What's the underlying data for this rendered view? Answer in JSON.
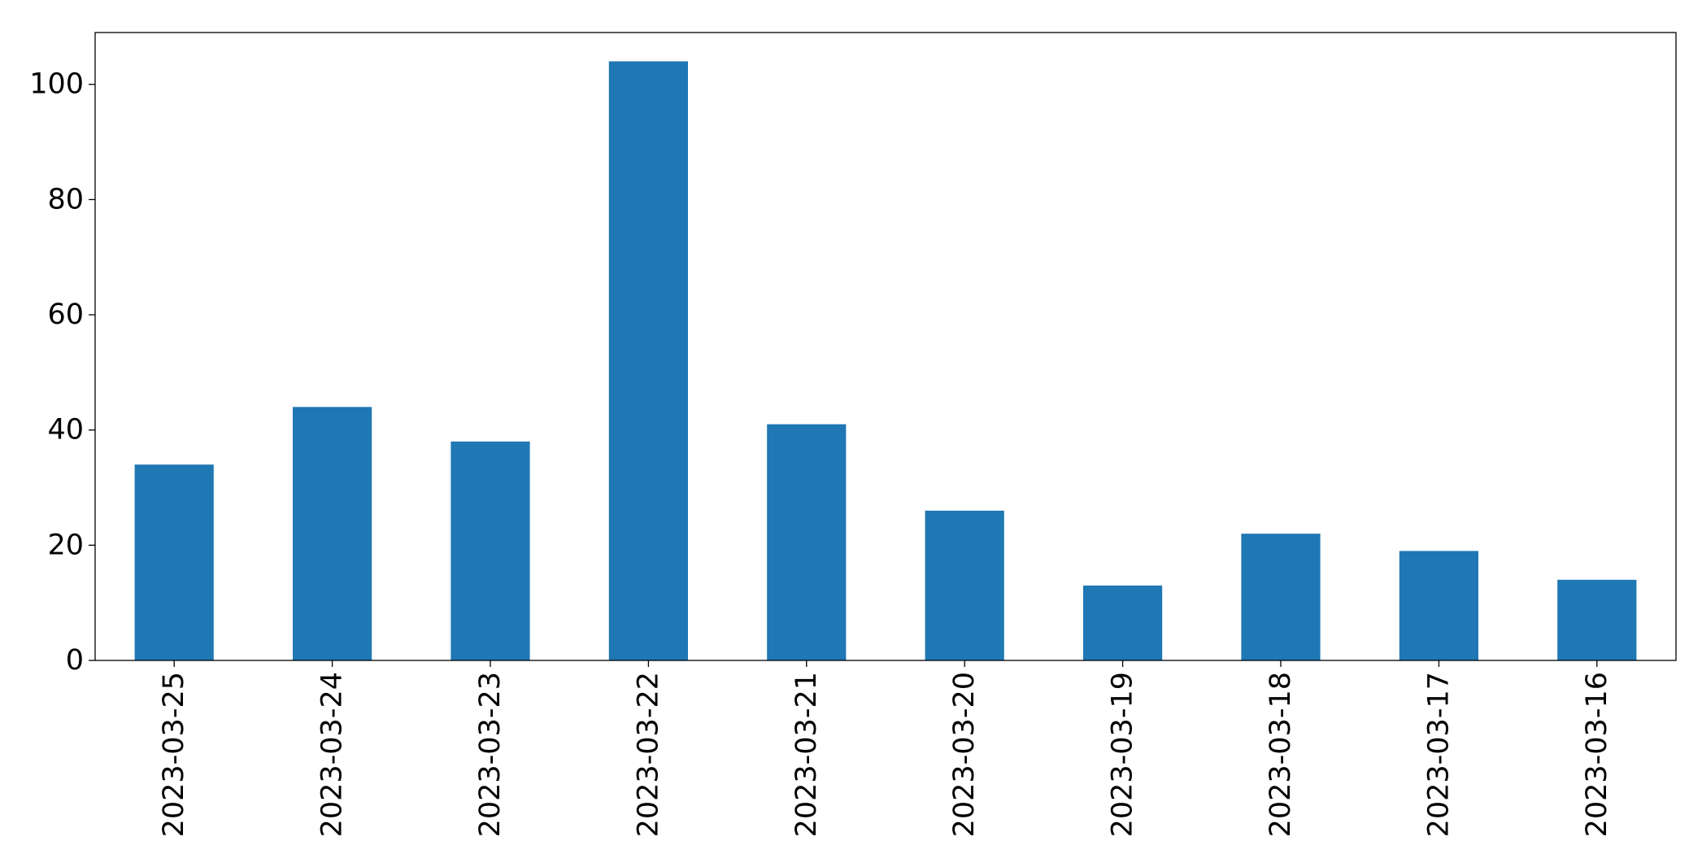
{
  "chart_data": {
    "type": "bar",
    "title": "",
    "xlabel": "",
    "ylabel": "",
    "categories": [
      "2023-03-25",
      "2023-03-24",
      "2023-03-23",
      "2023-03-22",
      "2023-03-21",
      "2023-03-20",
      "2023-03-19",
      "2023-03-18",
      "2023-03-17",
      "2023-03-16"
    ],
    "values": [
      34,
      44,
      38,
      104,
      41,
      26,
      13,
      22,
      19,
      14
    ],
    "ylim": [
      0,
      109
    ],
    "yticks": [
      "0",
      "20",
      "40",
      "60",
      "80",
      "100"
    ],
    "bar_color": "#1f77b4",
    "grid": false,
    "legend": "none"
  }
}
